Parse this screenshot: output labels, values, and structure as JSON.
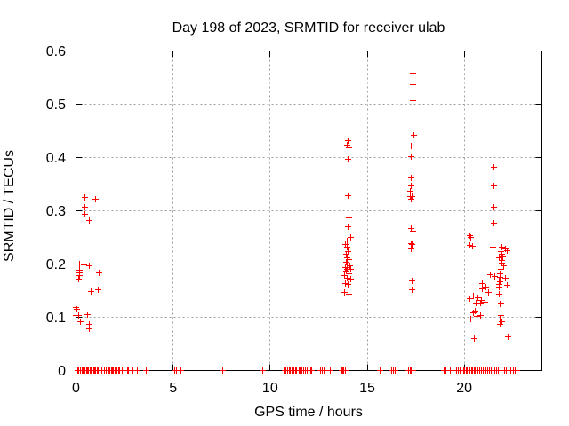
{
  "chart_data": {
    "type": "scatter",
    "title": "Day 198 of 2023, SRMTID for receiver ulab",
    "xlabel": "GPS time / hours",
    "ylabel": "SRMTID / TECUs",
    "xlim": [
      0,
      24
    ],
    "ylim": [
      0,
      0.6
    ],
    "xticks": [
      0,
      5,
      10,
      15,
      20
    ],
    "xtick_labels": [
      "0",
      "5",
      "10",
      "15",
      "20"
    ],
    "yticks": [
      0,
      0.1,
      0.2,
      0.3,
      0.4,
      0.5,
      0.6
    ],
    "ytick_labels": [
      "0",
      "0.1",
      "0.2",
      "0.3",
      "0.4",
      "0.5",
      "0.6"
    ],
    "grid": true,
    "legend": "none",
    "marker": "plus",
    "marker_color": "#ff0000",
    "grid_color": "#9e9e9e",
    "axis_color": "#000000",
    "background_color": "#ffffff",
    "series": [
      {
        "name": "SRMTID",
        "points": [
          [
            0.46,
            0.325
          ],
          [
            1.0,
            0.322
          ],
          [
            0.44,
            0.306
          ],
          [
            0.48,
            0.293
          ],
          [
            0.69,
            0.282
          ],
          [
            0.18,
            0.2
          ],
          [
            0.41,
            0.199
          ],
          [
            0.69,
            0.196
          ],
          [
            1.19,
            0.183
          ],
          [
            0.18,
            0.188
          ],
          [
            0.2,
            0.183
          ],
          [
            0.17,
            0.179
          ],
          [
            0.15,
            0.172
          ],
          [
            1.15,
            0.151
          ],
          [
            0.77,
            0.148
          ],
          [
            0.0,
            0.119
          ],
          [
            0.03,
            0.115
          ],
          [
            0.0,
            0.104
          ],
          [
            0.15,
            0.103
          ],
          [
            0.58,
            0.105
          ],
          [
            0.23,
            0.092
          ],
          [
            0.69,
            0.087
          ],
          [
            0.69,
            0.079
          ],
          [
            14.0,
            0.432
          ],
          [
            13.98,
            0.424
          ],
          [
            14.05,
            0.418
          ],
          [
            14.0,
            0.396
          ],
          [
            14.05,
            0.364
          ],
          [
            14.0,
            0.328
          ],
          [
            14.05,
            0.287
          ],
          [
            14.0,
            0.27
          ],
          [
            14.15,
            0.25
          ],
          [
            13.97,
            0.243
          ],
          [
            13.9,
            0.236
          ],
          [
            13.98,
            0.231
          ],
          [
            14.08,
            0.23
          ],
          [
            14.03,
            0.224
          ],
          [
            13.92,
            0.218
          ],
          [
            13.97,
            0.211
          ],
          [
            14.07,
            0.208
          ],
          [
            13.92,
            0.204
          ],
          [
            13.97,
            0.2
          ],
          [
            14.1,
            0.196
          ],
          [
            13.87,
            0.193
          ],
          [
            13.99,
            0.19
          ],
          [
            14.17,
            0.19
          ],
          [
            13.94,
            0.186
          ],
          [
            14.07,
            0.182
          ],
          [
            13.84,
            0.178
          ],
          [
            13.97,
            0.174
          ],
          [
            14.14,
            0.171
          ],
          [
            13.87,
            0.164
          ],
          [
            14.02,
            0.162
          ],
          [
            13.84,
            0.146
          ],
          [
            14.05,
            0.143
          ],
          [
            17.38,
            0.558
          ],
          [
            17.37,
            0.536
          ],
          [
            17.37,
            0.507
          ],
          [
            17.4,
            0.442
          ],
          [
            17.28,
            0.421
          ],
          [
            17.29,
            0.402
          ],
          [
            17.28,
            0.362
          ],
          [
            17.28,
            0.346
          ],
          [
            17.24,
            0.337
          ],
          [
            17.21,
            0.327
          ],
          [
            17.33,
            0.327
          ],
          [
            17.28,
            0.321
          ],
          [
            17.25,
            0.267
          ],
          [
            17.34,
            0.262
          ],
          [
            17.26,
            0.239
          ],
          [
            17.31,
            0.237
          ],
          [
            17.27,
            0.228
          ],
          [
            17.33,
            0.169
          ],
          [
            17.31,
            0.151
          ],
          [
            21.54,
            0.382
          ],
          [
            21.54,
            0.346
          ],
          [
            21.54,
            0.307
          ],
          [
            21.52,
            0.276
          ],
          [
            20.28,
            0.253
          ],
          [
            20.35,
            0.25
          ],
          [
            20.31,
            0.235
          ],
          [
            20.42,
            0.234
          ],
          [
            21.5,
            0.232
          ],
          [
            21.93,
            0.231
          ],
          [
            22.1,
            0.228
          ],
          [
            21.88,
            0.224
          ],
          [
            22.21,
            0.225
          ],
          [
            21.95,
            0.219
          ],
          [
            21.97,
            0.214
          ],
          [
            21.8,
            0.211
          ],
          [
            21.93,
            0.207
          ],
          [
            21.95,
            0.202
          ],
          [
            22.03,
            0.197
          ],
          [
            21.9,
            0.19
          ],
          [
            21.33,
            0.18
          ],
          [
            21.56,
            0.176
          ],
          [
            21.83,
            0.181
          ],
          [
            21.85,
            0.175
          ],
          [
            21.8,
            0.17
          ],
          [
            21.85,
            0.166
          ],
          [
            21.82,
            0.161
          ],
          [
            21.79,
            0.157
          ],
          [
            22.1,
            0.174
          ],
          [
            22.22,
            0.16
          ],
          [
            20.95,
            0.163
          ],
          [
            21.1,
            0.157
          ],
          [
            20.94,
            0.153
          ],
          [
            21.25,
            0.146
          ],
          [
            21.8,
            0.143
          ],
          [
            20.49,
            0.14
          ],
          [
            20.72,
            0.137
          ],
          [
            20.29,
            0.135
          ],
          [
            20.87,
            0.132
          ],
          [
            21.9,
            0.127
          ],
          [
            20.6,
            0.126
          ],
          [
            20.86,
            0.127
          ],
          [
            21.06,
            0.129
          ],
          [
            21.87,
            0.125
          ],
          [
            20.56,
            0.112
          ],
          [
            20.47,
            0.108
          ],
          [
            20.35,
            0.096
          ],
          [
            20.66,
            0.102
          ],
          [
            20.84,
            0.103
          ],
          [
            21.9,
            0.104
          ],
          [
            21.87,
            0.097
          ],
          [
            21.93,
            0.091
          ],
          [
            21.87,
            0.087
          ],
          [
            20.5,
            0.06
          ],
          [
            22.24,
            0.064
          ]
        ]
      }
    ],
    "baseline_x": [
      0.08,
      0.15,
      0.23,
      0.3,
      0.36,
      0.42,
      0.48,
      0.54,
      0.6,
      0.66,
      0.72,
      0.78,
      0.84,
      0.9,
      0.96,
      1.02,
      1.1,
      1.16,
      1.25,
      1.32,
      1.48,
      1.55,
      1.7,
      1.76,
      1.82,
      1.88,
      1.94,
      2.0,
      2.06,
      2.12,
      2.18,
      2.24,
      2.4,
      2.46,
      2.65,
      2.7,
      2.88,
      2.94,
      3.15,
      3.6,
      5.1,
      5.18,
      5.4,
      7.55,
      9.6,
      10.75,
      10.82,
      10.9,
      10.97,
      11.05,
      11.12,
      11.2,
      11.3,
      11.38,
      11.48,
      11.55,
      11.65,
      11.72,
      11.8,
      11.9,
      12.0,
      12.08,
      12.16,
      12.6,
      12.68,
      12.78,
      13.1,
      13.68,
      13.74,
      13.8,
      13.86,
      15.65,
      16.25,
      16.33,
      16.45,
      17.12,
      17.2,
      17.28,
      17.36,
      18.95,
      19.05,
      19.3,
      19.6,
      19.68,
      19.78,
      19.95,
      20.02,
      20.09,
      20.16,
      20.23,
      20.3,
      20.37,
      20.44,
      20.51,
      20.58,
      20.65,
      20.72,
      20.8,
      20.88,
      20.96,
      21.05,
      21.12,
      21.2,
      21.28,
      21.38,
      21.48,
      21.58,
      21.68,
      21.76,
      22.08,
      22.16,
      22.3,
      22.4,
      22.55,
      22.62,
      22.7
    ]
  }
}
